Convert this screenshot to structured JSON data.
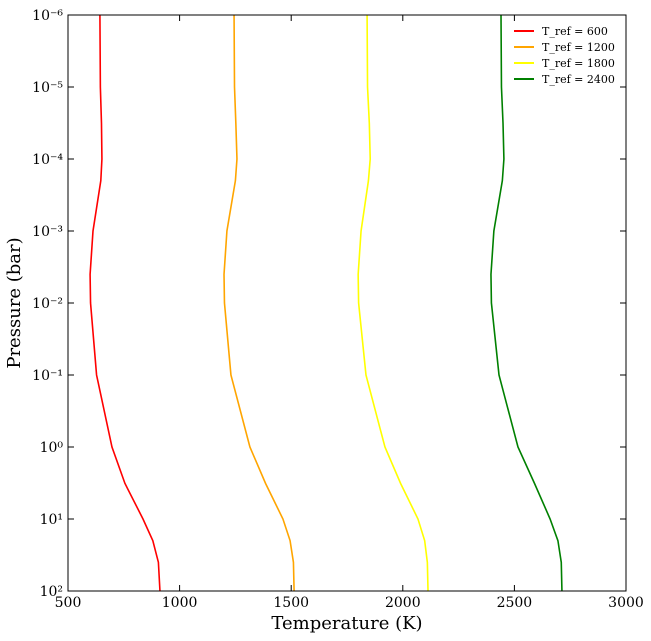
{
  "chart_data": {
    "type": "line",
    "xlabel": "Temperature (K)",
    "ylabel": "Pressure (bar)",
    "y": [
      1e-06,
      1e-05,
      3.2e-05,
      0.0001,
      0.0002,
      0.001,
      0.004,
      0.01,
      0.1,
      1,
      3.2,
      10,
      20,
      40,
      100
    ],
    "series": [
      {
        "name": "T_ref = 600",
        "color": "#ff0000",
        "x": [
          643,
          645,
          650,
          652,
          647,
          612,
          599,
          601,
          628,
          697,
          755,
          836,
          880,
          905,
          912
        ]
      },
      {
        "name": "T_ref = 1200",
        "color": "#ffa500",
        "x": [
          1244,
          1246,
          1252,
          1257,
          1250,
          1212,
          1199,
          1201,
          1230,
          1315,
          1385,
          1463,
          1495,
          1510,
          1513
        ]
      },
      {
        "name": "T_ref = 1800",
        "color": "#ffff00",
        "x": [
          1840,
          1842,
          1850,
          1854,
          1846,
          1813,
          1800,
          1802,
          1835,
          1920,
          1990,
          2068,
          2098,
          2110,
          2113
        ]
      },
      {
        "name": "T_ref = 2400",
        "color": "#008000",
        "x": [
          2440,
          2442,
          2449,
          2453,
          2446,
          2408,
          2395,
          2397,
          2431,
          2516,
          2590,
          2660,
          2695,
          2710,
          2713
        ]
      }
    ],
    "xlim": [
      500,
      3000
    ],
    "xticks": [
      500,
      1000,
      1500,
      2000,
      2500,
      3000
    ],
    "ylim": [
      1e-06,
      100
    ],
    "ylog": true,
    "yinverted": true,
    "yticks": [
      {
        "value": 1e-06,
        "label": "10⁻⁶"
      },
      {
        "value": 1e-05,
        "label": "10⁻⁵"
      },
      {
        "value": 0.0001,
        "label": "10⁻⁴"
      },
      {
        "value": 0.001,
        "label": "10⁻³"
      },
      {
        "value": 0.01,
        "label": "10⁻²"
      },
      {
        "value": 0.1,
        "label": "10⁻¹"
      },
      {
        "value": 1,
        "label": "10⁰"
      },
      {
        "value": 10,
        "label": "10¹"
      },
      {
        "value": 100,
        "label": "10²"
      }
    ],
    "legend": "upper right",
    "grid": false
  }
}
